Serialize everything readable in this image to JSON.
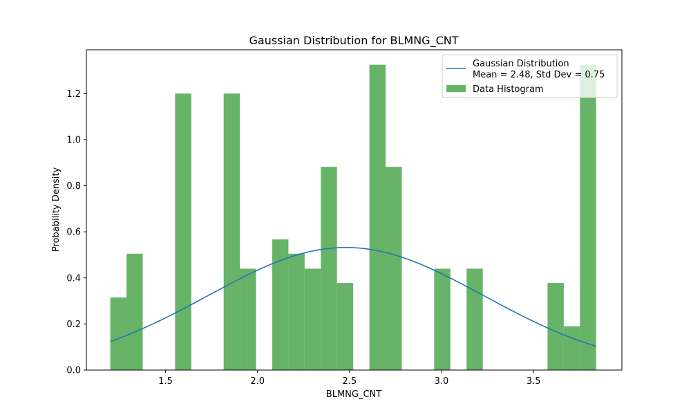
{
  "chart_data": {
    "type": "bar",
    "title": "Gaussian Distribution for BLMNG_CNT",
    "xlabel": "BLMNG_CNT",
    "ylabel": "Probability Density",
    "xlim": [
      1.07,
      3.98
    ],
    "ylim": [
      0.0,
      1.39
    ],
    "xticks": [
      "1.5",
      "2.0",
      "2.5",
      "3.0",
      "3.5"
    ],
    "yticks": [
      "0.0",
      "0.2",
      "0.4",
      "0.6",
      "0.8",
      "1.0",
      "1.2"
    ],
    "grid": false,
    "legend_position": "top-right",
    "histogram": {
      "name": "Data Histogram",
      "color": "#4ca64c",
      "bin_edges": [
        1.2,
        1.288,
        1.376,
        1.464,
        1.552,
        1.64,
        1.728,
        1.816,
        1.904,
        1.992,
        2.08,
        2.168,
        2.256,
        2.344,
        2.432,
        2.52,
        2.608,
        2.696,
        2.784,
        2.872,
        2.96,
        3.048,
        3.136,
        3.224,
        3.312,
        3.4,
        3.488,
        3.576,
        3.664,
        3.752,
        3.84
      ],
      "values": [
        0.315,
        0.505,
        0.0,
        0.0,
        1.2,
        0.0,
        0.0,
        1.2,
        0.44,
        0.0,
        0.567,
        0.505,
        0.44,
        0.882,
        0.378,
        0.0,
        1.325,
        0.882,
        0.0,
        0.0,
        0.44,
        0.0,
        0.44,
        0.0,
        0.0,
        0.0,
        0.0,
        0.378,
        0.19,
        1.325
      ]
    },
    "gaussian": {
      "name_line1": "Gaussian Distribution",
      "name_line2": "Mean = 2.48, Std Dev = 0.75",
      "mean": 2.48,
      "std": 0.75,
      "x_range": [
        1.2,
        3.84
      ],
      "color": "#1f77b4"
    }
  }
}
